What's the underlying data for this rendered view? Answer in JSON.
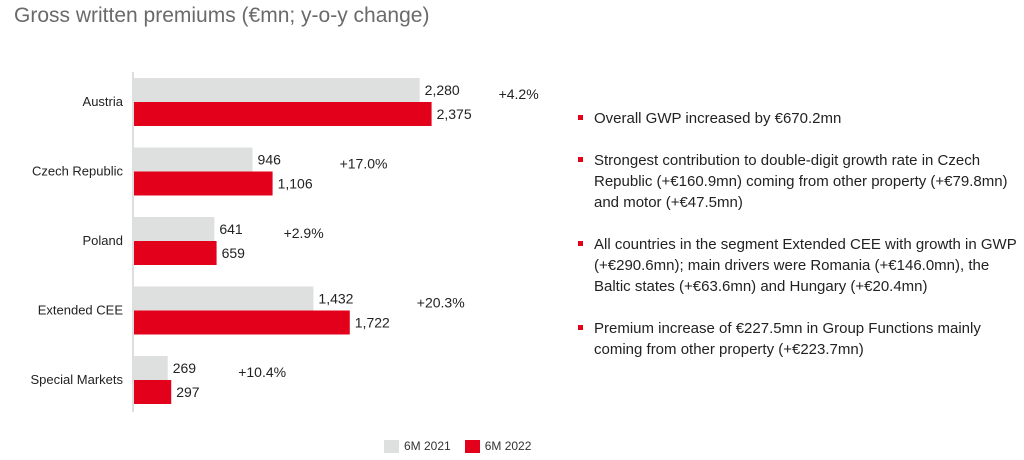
{
  "title": "Gross written premiums (€mn; y-o-y change)",
  "chart_data": {
    "type": "bar",
    "orientation": "horizontal",
    "categories": [
      "Austria",
      "Czech Republic",
      "Poland",
      "Extended CEE",
      "Special Markets"
    ],
    "series": [
      {
        "name": "6M 2021",
        "values": [
          2280,
          946,
          641,
          1432,
          269
        ],
        "labels": [
          "2,280",
          "946",
          "641",
          "1,432",
          "269"
        ],
        "color": "#dedfdf"
      },
      {
        "name": "6M 2022",
        "values": [
          2375,
          1106,
          659,
          1722,
          297
        ],
        "labels": [
          "2,375",
          "1,106",
          "659",
          "1,722",
          "297"
        ],
        "color": "#e2001a"
      }
    ],
    "yoy_change": [
      "+4.2%",
      "+17.0%",
      "+2.9%",
      "+20.3%",
      "+10.4%"
    ],
    "legend": "bottom",
    "grid": false
  },
  "bullets": [
    "Overall GWP increased by €670.2mn",
    "Strongest contribution to double-digit growth rate in Czech Republic (+€160.9mn) coming from other property (+€79.8mn) and motor (+€47.5mn)",
    "All countries in the segment Extended CEE with growth in GWP (+€290.6mn); main drivers were Romania (+€146.0mn), the Baltic states (+€63.6mn) and Hungary (+€20.4mn)",
    "Premium increase of €227.5mn in Group Functions mainly coming from other property (+€223.7mn)"
  ],
  "colors": {
    "accent": "#e2001a",
    "prior": "#dedfdf"
  }
}
